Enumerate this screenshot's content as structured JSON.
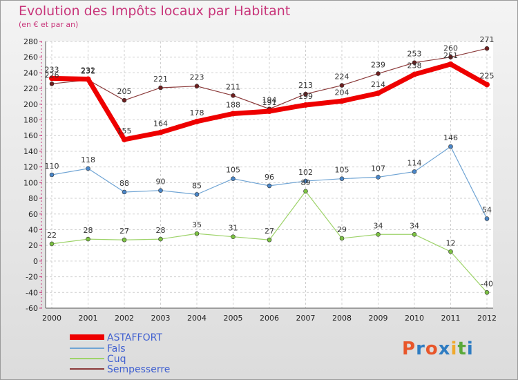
{
  "title": "Evolution des Impôts locaux par Habitant",
  "subtitle": "(en € et par an)",
  "logo": {
    "text": "Proxiti",
    "colors": [
      "#e8562a",
      "#2e7cc2",
      "#e8562a",
      "#2e7cc2",
      "#f0a92d",
      "#5aa93a",
      "#2e7cc2"
    ]
  },
  "chart_data": {
    "type": "line",
    "title": "Evolution des Impôts locaux par Habitant",
    "subtitle": "(en € et par an)",
    "xlabel": "",
    "ylabel": "",
    "ylim": [
      -60,
      280
    ],
    "ytick_step": 20,
    "grid": true,
    "legend_position": "bottom",
    "categories": [
      "2000",
      "2001",
      "2002",
      "2003",
      "2004",
      "2005",
      "2006",
      "2007",
      "2008",
      "2009",
      "2010",
      "2011",
      "2012"
    ],
    "series": [
      {
        "name": "ASTAFFORT",
        "color": "#ee0000",
        "point_color": "#ee0000",
        "width": 7,
        "values": [
          233,
          232,
          155,
          164,
          178,
          188,
          191,
          199,
          204,
          214,
          238,
          251,
          225
        ],
        "labels": [
          "233",
          "232",
          "155",
          "164",
          "178",
          "188",
          "191",
          "199",
          "204",
          "214",
          "238",
          "251",
          "225"
        ]
      },
      {
        "name": "Fals",
        "color": "#6fa4d4",
        "point_color": "#4a86c8",
        "width": 1.2,
        "values": [
          110,
          118,
          88,
          90,
          85,
          105,
          96,
          102,
          105,
          107,
          114,
          146,
          54
        ],
        "labels": [
          "110",
          "118",
          "88",
          "90",
          "85",
          "105",
          "96",
          "102",
          "105",
          "107",
          "114",
          "146",
          "54"
        ]
      },
      {
        "name": "Cuq",
        "color": "#9ed36a",
        "point_color": "#7cc242",
        "width": 1.2,
        "values": [
          22,
          28,
          27,
          28,
          35,
          31,
          27,
          89,
          29,
          34,
          34,
          12,
          -40
        ],
        "labels": [
          "22",
          "28",
          "27",
          "28",
          "35",
          "31",
          "27",
          "89",
          "29",
          "34",
          "34",
          "12",
          "-40"
        ]
      },
      {
        "name": "Sempesserre",
        "color": "#8b3a3a",
        "point_color": "#6e1f1f",
        "width": 1.2,
        "values": [
          226,
          231,
          205,
          221,
          223,
          211,
          194,
          213,
          224,
          239,
          253,
          260,
          271
        ],
        "labels": [
          "226",
          "231",
          "205",
          "221",
          "223",
          "211",
          "194",
          "213",
          "224",
          "239",
          "253",
          "260",
          "271"
        ]
      }
    ]
  }
}
